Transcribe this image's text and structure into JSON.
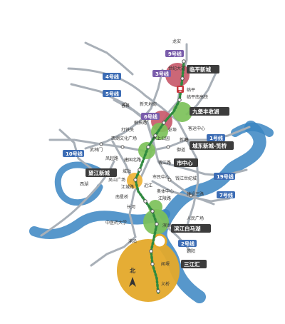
{
  "colors": {
    "river": "#3a85c2",
    "river_light": "#e3eef8",
    "lines": "#a9b0b8",
    "route": "#2f8a3f",
    "hub_red": "#c85a6b",
    "hub_green": "#7cc159",
    "hub_yellow": "#e4a92a",
    "hub_orange": "#f0b53a",
    "station": "#333333",
    "label_bg": "#3c3c3c",
    "line_badge_purple": "#7a5dab",
    "line_badge_blue": "#3d6db5"
  },
  "districts": [
    "临平新城",
    "九堡丰收湖",
    "城东新城-笕桥",
    "市中心",
    "望江新城",
    "滨江白马湖",
    "三江汇"
  ],
  "line_labels": [
    "9号线",
    "3号线",
    "4号线",
    "5号线",
    "6号线",
    "1号线",
    "10号线",
    "19号线",
    "7号线",
    "2号线"
  ],
  "stations": [
    "龙安",
    "世纪大道",
    "临平",
    "临平南高铁",
    "新天地街",
    "善贤",
    "桐扶路",
    "打铁关",
    "客运中心",
    "武林门",
    "西湖文化广场",
    "水上公园",
    "彭埠",
    "新塘",
    "御道",
    "凤起路",
    "建国北路",
    "钱江路",
    "近江",
    "西湖",
    "城站",
    "吴山广场",
    "江城路",
    "市民中心",
    "钱江世纪城",
    "南星桥",
    "奥体中心",
    "江陵路",
    "建设三路",
    "长河",
    "中医药大学",
    "人民广场",
    "滨湖",
    "浦沿",
    "闻堰",
    "朝阳",
    "义桥"
  ],
  "legend": {
    "north": "北"
  },
  "icons": [
    "rail-station-icon",
    "north-arrow-icon"
  ]
}
